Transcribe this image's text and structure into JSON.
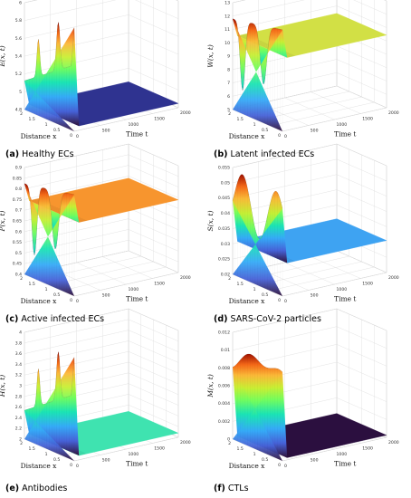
{
  "panels": [
    {
      "id": "a",
      "caption_tag": "(a)",
      "caption_text": "Healthy ECs",
      "zlabel": "E(x, t)",
      "xlabel": "Distance x",
      "ylabel": "Time t",
      "exponent": "",
      "z_ticks": [
        "4.8",
        "5",
        "5.2",
        "5.4",
        "5.6",
        "5.8",
        "6"
      ],
      "x_ticks": [
        "0",
        "0.5",
        "1",
        "1.5",
        "2"
      ],
      "t_ticks": [
        "0",
        "500",
        "1000",
        "1500",
        "2000"
      ],
      "steady_color": "#2f3390",
      "shape": "drop"
    },
    {
      "id": "b",
      "caption_tag": "(b)",
      "caption_text": "Latent infected ECs",
      "zlabel": "W(x, t)",
      "xlabel": "Distance x",
      "ylabel": "Time t",
      "exponent": "×10⁻³",
      "z_ticks": [
        "5",
        "6",
        "7",
        "8",
        "9",
        "10",
        "11",
        "12",
        "13"
      ],
      "x_ticks": [
        "0",
        "0.5",
        "1",
        "1.5",
        "2"
      ],
      "t_ticks": [
        "0",
        "500",
        "1000",
        "1500",
        "2000"
      ],
      "steady_color": "#d2e045",
      "shape": "dip"
    },
    {
      "id": "c",
      "caption_tag": "(c)",
      "caption_text": "Active infected ECs",
      "zlabel": "P(x, t)",
      "xlabel": "Distance x",
      "ylabel": "Time t",
      "exponent": "",
      "z_ticks": [
        "0.4",
        "0.45",
        "0.5",
        "0.55",
        "0.6",
        "0.65",
        "0.7",
        "0.75",
        "0.8",
        "0.85",
        "0.9"
      ],
      "x_ticks": [
        "0",
        "0.5",
        "1",
        "1.5",
        "2"
      ],
      "t_ticks": [
        "0",
        "500",
        "1000",
        "1500",
        "2000"
      ],
      "steady_color": "#f7952e",
      "shape": "dip"
    },
    {
      "id": "d",
      "caption_tag": "(d)",
      "caption_text": "SARS-CoV-2 particles",
      "zlabel": "S(x, t)",
      "xlabel": "Distance x",
      "ylabel": "Time t",
      "exponent": "",
      "z_ticks": [
        "0.02",
        "0.025",
        "0.03",
        "0.035",
        "0.04",
        "0.045",
        "0.05",
        "0.055"
      ],
      "x_ticks": [
        "0",
        "0.5",
        "1",
        "1.5",
        "2"
      ],
      "t_ticks": [
        "0",
        "500",
        "1000",
        "1500",
        "2000"
      ],
      "steady_color": "#3ea3f2",
      "shape": "wave"
    },
    {
      "id": "e",
      "caption_tag": "(e)",
      "caption_text": "Antibodies",
      "zlabel": "H(x, t)",
      "xlabel": "Distance x",
      "ylabel": "Time t",
      "exponent": "",
      "z_ticks": [
        "2",
        "2.2",
        "2.4",
        "2.6",
        "2.8",
        "3",
        "3.2",
        "3.4",
        "3.6",
        "3.8",
        "4"
      ],
      "x_ticks": [
        "0",
        "0.5",
        "1",
        "1.5",
        "2"
      ],
      "t_ticks": [
        "0",
        "500",
        "1000",
        "1500",
        "2000"
      ],
      "steady_color": "#3fe3b0",
      "shape": "drop"
    },
    {
      "id": "f",
      "caption_tag": "(f)",
      "caption_text": "CTLs",
      "zlabel": "M(x, t)",
      "xlabel": "Distance x",
      "ylabel": "Time t",
      "exponent": "",
      "z_ticks": [
        "0",
        "0.002",
        "0.004",
        "0.006",
        "0.008",
        "0.01",
        "0.012"
      ],
      "x_ticks": [
        "0",
        "0.5",
        "1",
        "1.5",
        "2"
      ],
      "t_ticks": [
        "0",
        "500",
        "1000",
        "1500",
        "2000"
      ],
      "steady_color": "#2b0f3f",
      "shape": "plateau"
    }
  ],
  "chart_data": [
    {
      "type": "surface",
      "title": "",
      "xlabel": "Distance x",
      "ylabel": "Time t",
      "zlabel": "E(x, t)",
      "xlim": [
        0,
        2
      ],
      "ylim": [
        0,
        2000
      ],
      "zlim": [
        4.8,
        6
      ]
    },
    {
      "type": "surface",
      "title": "",
      "xlabel": "Distance x",
      "ylabel": "Time t",
      "zlabel": "W(x, t)",
      "xlim": [
        0,
        2
      ],
      "ylim": [
        0,
        2000
      ],
      "zlim": [
        0.005,
        0.013
      ]
    },
    {
      "type": "surface",
      "title": "",
      "xlabel": "Distance x",
      "ylabel": "Time t",
      "zlabel": "P(x, t)",
      "xlim": [
        0,
        2
      ],
      "ylim": [
        0,
        2000
      ],
      "zlim": [
        0.4,
        0.9
      ]
    },
    {
      "type": "surface",
      "title": "",
      "xlabel": "Distance x",
      "ylabel": "Time t",
      "zlabel": "S(x, t)",
      "xlim": [
        0,
        2
      ],
      "ylim": [
        0,
        2000
      ],
      "zlim": [
        0.02,
        0.055
      ]
    },
    {
      "type": "surface",
      "title": "",
      "xlabel": "Distance x",
      "ylabel": "Time t",
      "zlabel": "H(x, t)",
      "xlim": [
        0,
        2
      ],
      "ylim": [
        0,
        2000
      ],
      "zlim": [
        2,
        4
      ]
    },
    {
      "type": "surface",
      "title": "",
      "xlabel": "Distance x",
      "ylabel": "Time t",
      "zlabel": "M(x, t)",
      "xlim": [
        0,
        2
      ],
      "ylim": [
        0,
        2000
      ],
      "zlim": [
        0,
        0.012
      ]
    }
  ]
}
